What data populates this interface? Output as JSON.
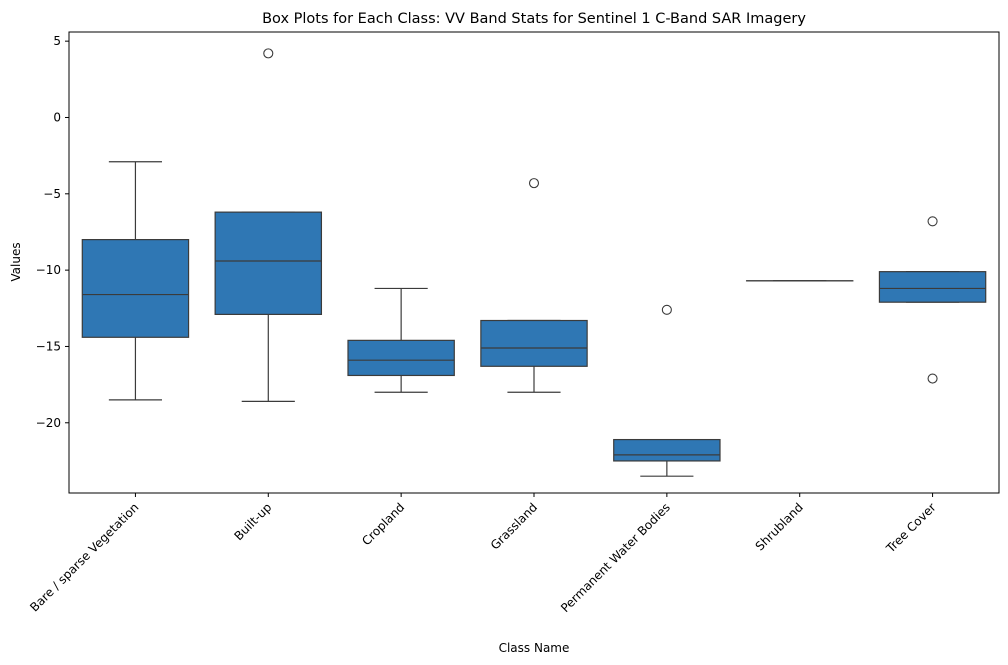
{
  "chart_data": {
    "type": "box",
    "title": "Box Plots for Each Class: VV Band Stats for Sentinel 1 C-Band SAR Imagery",
    "xlabel": "Class Name",
    "ylabel": "Values",
    "ylim": [
      -24.6,
      5.6
    ],
    "yticks": [
      5,
      0,
      -5,
      -10,
      -15,
      -20
    ],
    "grid": false,
    "box_color": "#2f77b4",
    "line_color": "#3b3b3b",
    "categories": [
      "Bare / sparse Vegetation",
      "Built-up",
      "Cropland",
      "Grassland",
      "Permanent Water Bodies",
      "Shrubland",
      "Tree Cover"
    ],
    "boxes": [
      {
        "whislo": -18.5,
        "q1": -14.4,
        "med": -11.6,
        "q3": -8.0,
        "whishi": -2.9,
        "fliers": []
      },
      {
        "whislo": -18.6,
        "q1": -12.9,
        "med": -9.4,
        "q3": -6.2,
        "whishi": -6.2,
        "fliers": [
          4.2
        ]
      },
      {
        "whislo": -18.0,
        "q1": -16.9,
        "med": -15.9,
        "q3": -14.6,
        "whishi": -11.2,
        "fliers": []
      },
      {
        "whislo": -18.0,
        "q1": -16.3,
        "med": -15.1,
        "q3": -13.3,
        "whishi": -13.3,
        "fliers": [
          -4.3
        ]
      },
      {
        "whislo": -23.5,
        "q1": -22.5,
        "med": -22.1,
        "q3": -21.1,
        "whishi": -21.1,
        "fliers": [
          -12.6
        ]
      },
      {
        "whislo": -10.7,
        "q1": -10.7,
        "med": -10.7,
        "q3": -10.7,
        "whishi": -10.7,
        "fliers": []
      },
      {
        "whislo": -12.1,
        "q1": -12.1,
        "med": -11.2,
        "q3": -10.1,
        "whishi": -10.1,
        "fliers": [
          -6.8,
          -17.1
        ]
      }
    ]
  }
}
